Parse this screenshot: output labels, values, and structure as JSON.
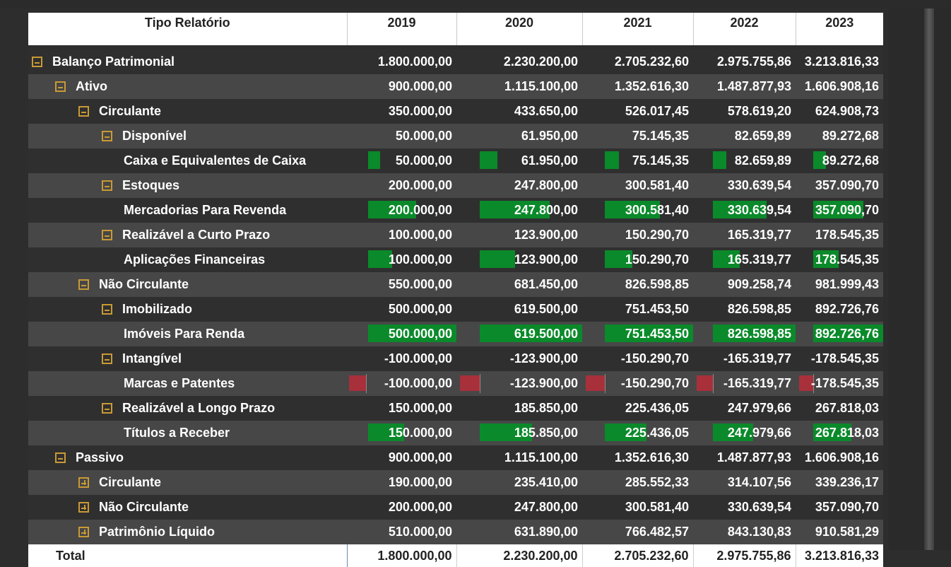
{
  "header": {
    "label_col": "Tipo Relatório",
    "years": [
      "2019",
      "2020",
      "2021",
      "2022",
      "2023"
    ]
  },
  "colors": {
    "positive_bar": "#0a8a2a",
    "negative_bar": "#a8303b",
    "toggle": "#c99a35",
    "background": "#2d2d2d"
  },
  "rows": [
    {
      "label": "Balanço Patrimonial",
      "level": 0,
      "toggle": "collapse",
      "values": [
        "1.800.000,00",
        "2.230.200,00",
        "2.705.232,60",
        "2.975.755,86",
        "3.213.816,33"
      ],
      "numeric": [
        1800000,
        2230200,
        2705232.6,
        2975755.86,
        3213816.33
      ]
    },
    {
      "label": "Ativo",
      "level": 1,
      "toggle": "collapse",
      "values": [
        "900.000,00",
        "1.115.100,00",
        "1.352.616,30",
        "1.487.877,93",
        "1.606.908,16"
      ],
      "numeric": [
        900000,
        1115100,
        1352616.3,
        1487877.93,
        1606908.16
      ]
    },
    {
      "label": "Circulante",
      "level": 2,
      "toggle": "collapse",
      "values": [
        "350.000,00",
        "433.650,00",
        "526.017,45",
        "578.619,20",
        "624.908,73"
      ],
      "numeric": [
        350000,
        433650,
        526017.45,
        578619.2,
        624908.73
      ]
    },
    {
      "label": "Disponível",
      "level": 3,
      "toggle": "collapse",
      "values": [
        "50.000,00",
        "61.950,00",
        "75.145,35",
        "82.659,89",
        "89.272,68"
      ],
      "numeric": [
        50000,
        61950,
        75145.35,
        82659.89,
        89272.68
      ]
    },
    {
      "label": "Caixa e Equivalentes de Caixa",
      "level": 4,
      "toggle": "none",
      "leaf": true,
      "values": [
        "50.000,00",
        "61.950,00",
        "75.145,35",
        "82.659,89",
        "89.272,68"
      ],
      "numeric": [
        50000,
        61950,
        75145.35,
        82659.89,
        89272.68
      ]
    },
    {
      "label": "Estoques",
      "level": 3,
      "toggle": "collapse",
      "values": [
        "200.000,00",
        "247.800,00",
        "300.581,40",
        "330.639,54",
        "357.090,70"
      ],
      "numeric": [
        200000,
        247800,
        300581.4,
        330639.54,
        357090.7
      ]
    },
    {
      "label": "Mercadorias Para Revenda",
      "level": 4,
      "toggle": "none",
      "leaf": true,
      "values": [
        "200.000,00",
        "247.800,00",
        "300.581,40",
        "330.639,54",
        "357.090,70"
      ],
      "numeric": [
        200000,
        247800,
        300581.4,
        330639.54,
        357090.7
      ]
    },
    {
      "label": "Realizável a Curto Prazo",
      "level": 3,
      "toggle": "collapse",
      "values": [
        "100.000,00",
        "123.900,00",
        "150.290,70",
        "165.319,77",
        "178.545,35"
      ],
      "numeric": [
        100000,
        123900,
        150290.7,
        165319.77,
        178545.35
      ]
    },
    {
      "label": "Aplicações Financeiras",
      "level": 4,
      "toggle": "none",
      "leaf": true,
      "values": [
        "100.000,00",
        "123.900,00",
        "150.290,70",
        "165.319,77",
        "178.545,35"
      ],
      "numeric": [
        100000,
        123900,
        150290.7,
        165319.77,
        178545.35
      ]
    },
    {
      "label": "Não Circulante",
      "level": 2,
      "toggle": "collapse",
      "values": [
        "550.000,00",
        "681.450,00",
        "826.598,85",
        "909.258,74",
        "981.999,43"
      ],
      "numeric": [
        550000,
        681450,
        826598.85,
        909258.74,
        981999.43
      ]
    },
    {
      "label": "Imobilizado",
      "level": 3,
      "toggle": "collapse",
      "values": [
        "500.000,00",
        "619.500,00",
        "751.453,50",
        "826.598,85",
        "892.726,76"
      ],
      "numeric": [
        500000,
        619500,
        751453.5,
        826598.85,
        892726.76
      ]
    },
    {
      "label": "Imóveis Para Renda",
      "level": 4,
      "toggle": "none",
      "leaf": true,
      "values": [
        "500.000,00",
        "619.500,00",
        "751.453,50",
        "826.598,85",
        "892.726,76"
      ],
      "numeric": [
        500000,
        619500,
        751453.5,
        826598.85,
        892726.76
      ]
    },
    {
      "label": "Intangível",
      "level": 3,
      "toggle": "collapse",
      "values": [
        "-100.000,00",
        "-123.900,00",
        "-150.290,70",
        "-165.319,77",
        "-178.545,35"
      ],
      "numeric": [
        -100000,
        -123900,
        -150290.7,
        -165319.77,
        -178545.35
      ]
    },
    {
      "label": "Marcas e Patentes",
      "level": 4,
      "toggle": "none",
      "leaf": true,
      "values": [
        "-100.000,00",
        "-123.900,00",
        "-150.290,70",
        "-165.319,77",
        "-178.545,35"
      ],
      "numeric": [
        -100000,
        -123900,
        -150290.7,
        -165319.77,
        -178545.35
      ]
    },
    {
      "label": "Realizável a Longo Prazo",
      "level": 3,
      "toggle": "collapse",
      "values": [
        "150.000,00",
        "185.850,00",
        "225.436,05",
        "247.979,66",
        "267.818,03"
      ],
      "numeric": [
        150000,
        185850,
        225436.05,
        247979.66,
        267818.03
      ]
    },
    {
      "label": "Títulos a Receber",
      "level": 4,
      "toggle": "none",
      "leaf": true,
      "values": [
        "150.000,00",
        "185.850,00",
        "225.436,05",
        "247.979,66",
        "267.818,03"
      ],
      "numeric": [
        150000,
        185850,
        225436.05,
        247979.66,
        267818.03
      ]
    },
    {
      "label": "Passivo",
      "level": 1,
      "toggle": "collapse",
      "values": [
        "900.000,00",
        "1.115.100,00",
        "1.352.616,30",
        "1.487.877,93",
        "1.606.908,16"
      ],
      "numeric": [
        900000,
        1115100,
        1352616.3,
        1487877.93,
        1606908.16
      ]
    },
    {
      "label": "Circulante",
      "level": 2,
      "toggle": "expand",
      "values": [
        "190.000,00",
        "235.410,00",
        "285.552,33",
        "314.107,56",
        "339.236,17"
      ],
      "numeric": [
        190000,
        235410,
        285552.33,
        314107.56,
        339236.17
      ]
    },
    {
      "label": "Não Circulante",
      "level": 2,
      "toggle": "expand",
      "values": [
        "200.000,00",
        "247.800,00",
        "300.581,40",
        "330.639,54",
        "357.090,70"
      ],
      "numeric": [
        200000,
        247800,
        300581.4,
        330639.54,
        357090.7
      ]
    },
    {
      "label": "Patrimônio Líquido",
      "level": 2,
      "toggle": "expand",
      "values": [
        "510.000,00",
        "631.890,00",
        "766.482,57",
        "843.130,83",
        "910.581,29"
      ],
      "numeric": [
        510000,
        631890,
        766482.57,
        843130.83,
        910581.29
      ]
    }
  ],
  "total": {
    "label": "Total",
    "values": [
      "1.800.000,00",
      "2.230.200,00",
      "2.705.232,60",
      "2.975.755,86",
      "3.213.816,33"
    ]
  }
}
